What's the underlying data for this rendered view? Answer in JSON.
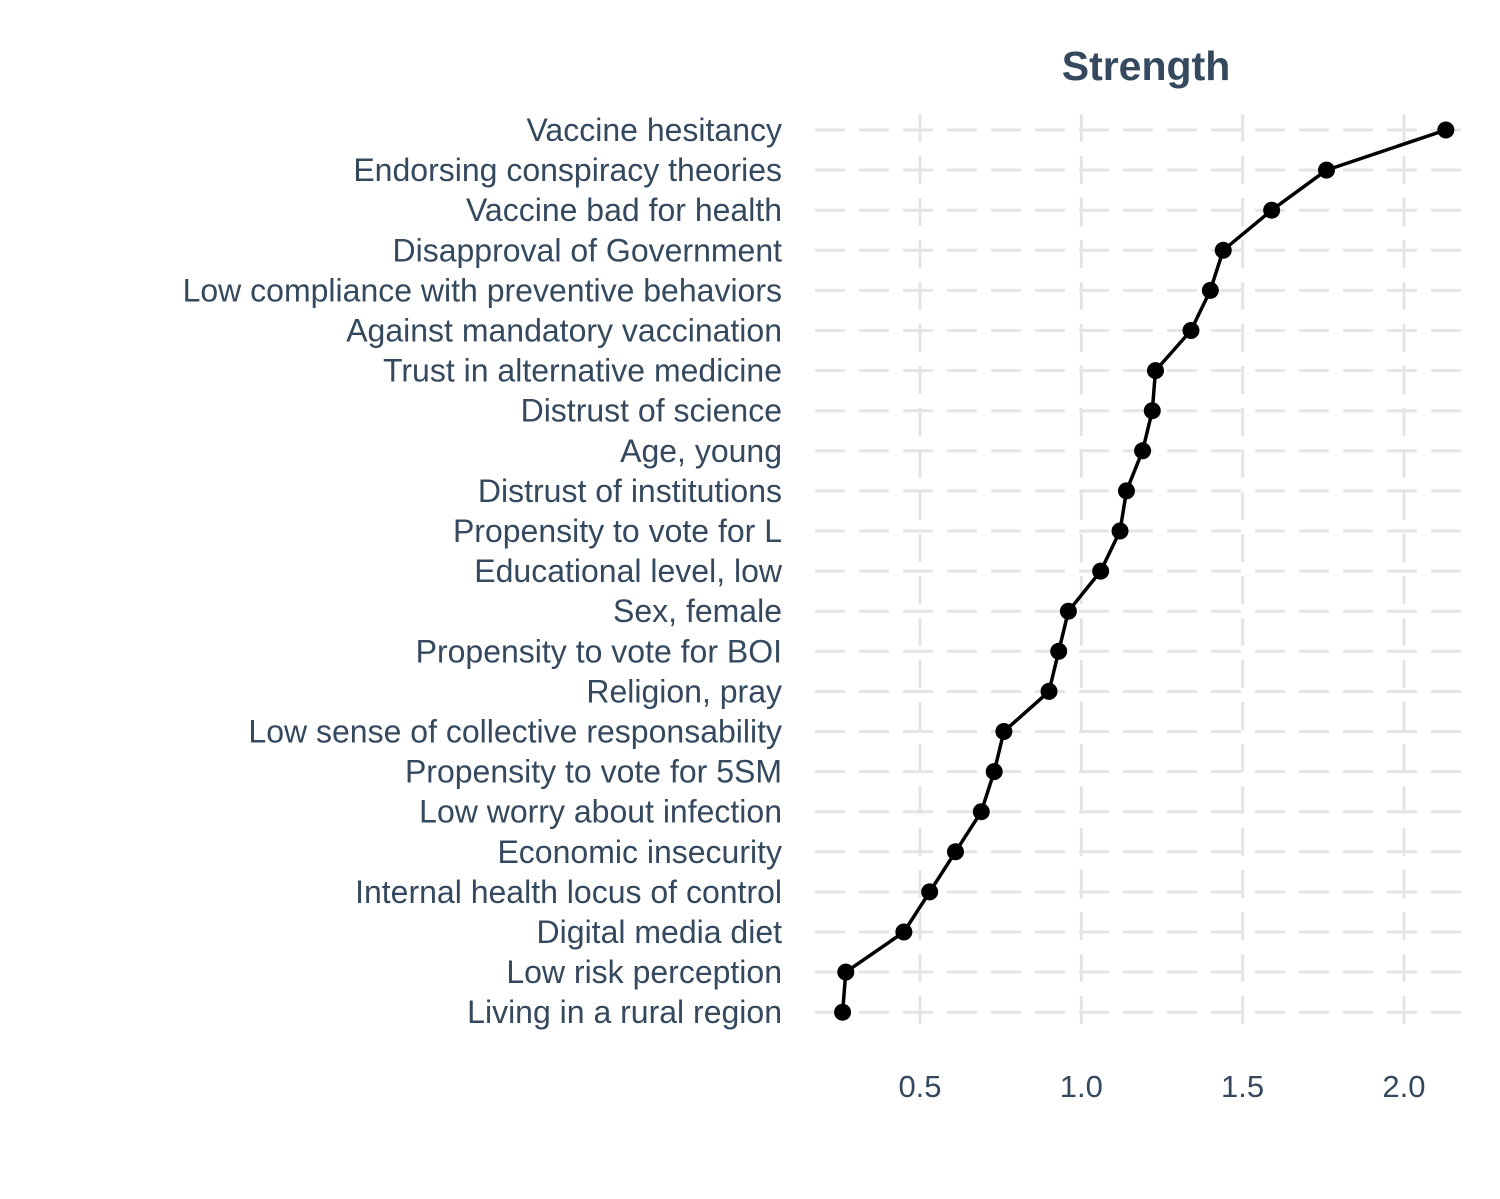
{
  "chart_data": {
    "type": "line",
    "title": "Strength",
    "xlabel": "",
    "ylabel": "",
    "xlim": [
      0.21,
      2.2
    ],
    "x_ticks": [
      "0.5",
      "1.0",
      "1.5",
      "2.0"
    ],
    "x_tick_values": [
      0.5,
      1.0,
      1.5,
      2.0
    ],
    "grid": true,
    "legend": "none",
    "categories": [
      "Vaccine hesitancy",
      "Endorsing conspiracy theories",
      "Vaccine bad for health",
      "Disapproval of Government",
      "Low compliance with preventive behaviors",
      "Against mandatory vaccination",
      "Trust in alternative medicine",
      "Distrust of science",
      "Age, young",
      "Distrust of institutions",
      "Propensity to vote for L",
      "Educational level, low",
      "Sex, female",
      "Propensity to vote for BOI",
      "Religion, pray",
      "Low sense of collective responsability",
      "Propensity to vote for 5SM",
      "Low worry about infection",
      "Economic insecurity",
      "Internal health locus of control",
      "Digital media diet",
      "Low risk perception",
      "Living in a rural region"
    ],
    "values": [
      2.13,
      1.76,
      1.59,
      1.44,
      1.4,
      1.34,
      1.23,
      1.22,
      1.19,
      1.14,
      1.12,
      1.06,
      0.96,
      0.93,
      0.9,
      0.76,
      0.73,
      0.69,
      0.61,
      0.53,
      0.45,
      0.27,
      0.26
    ],
    "colors": {
      "line": "#000000",
      "points": "#000000",
      "grid": "#e4e4e4",
      "text": "#34495e"
    }
  }
}
